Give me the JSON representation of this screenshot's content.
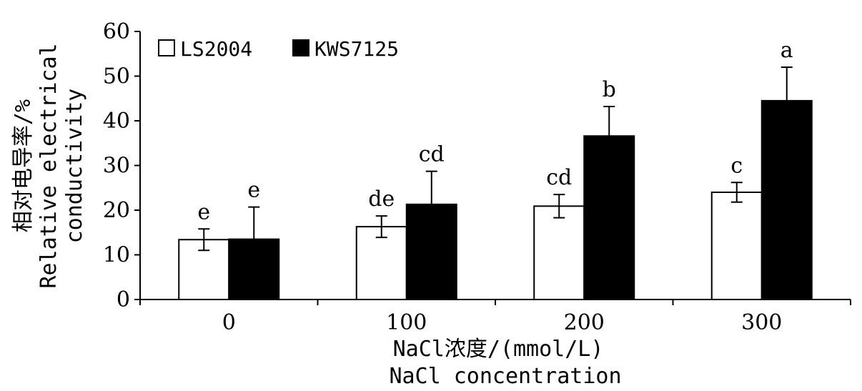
{
  "chart_data": {
    "type": "bar",
    "categories": [
      "0",
      "100",
      "200",
      "300"
    ],
    "series": [
      {
        "name": "LS2004",
        "fill": "#ffffff",
        "values": [
          13.4,
          16.3,
          20.9,
          24.0
        ],
        "errors": [
          2.4,
          2.4,
          2.6,
          2.2
        ],
        "letters": [
          "e",
          "de",
          "cd",
          "c"
        ]
      },
      {
        "name": "KWS7125",
        "fill": "#000000",
        "values": [
          13.5,
          21.3,
          36.6,
          44.5
        ],
        "errors": [
          7.2,
          7.4,
          6.6,
          7.5
        ],
        "letters": [
          "e",
          "cd",
          "b",
          "a"
        ]
      }
    ],
    "ylim": [
      0,
      60
    ],
    "yticks": [
      "0",
      "10",
      "20",
      "30",
      "40",
      "50",
      "60"
    ],
    "ylabel_cn": "相对电导率/%",
    "ylabel_en_line1": "Relative electrical",
    "ylabel_en_line2": "conductivity",
    "xlabel_cn": "NaCl浓度/(mmol/L)",
    "xlabel_en": "NaCl concentration",
    "legend_position": "top-left",
    "grid": false
  }
}
